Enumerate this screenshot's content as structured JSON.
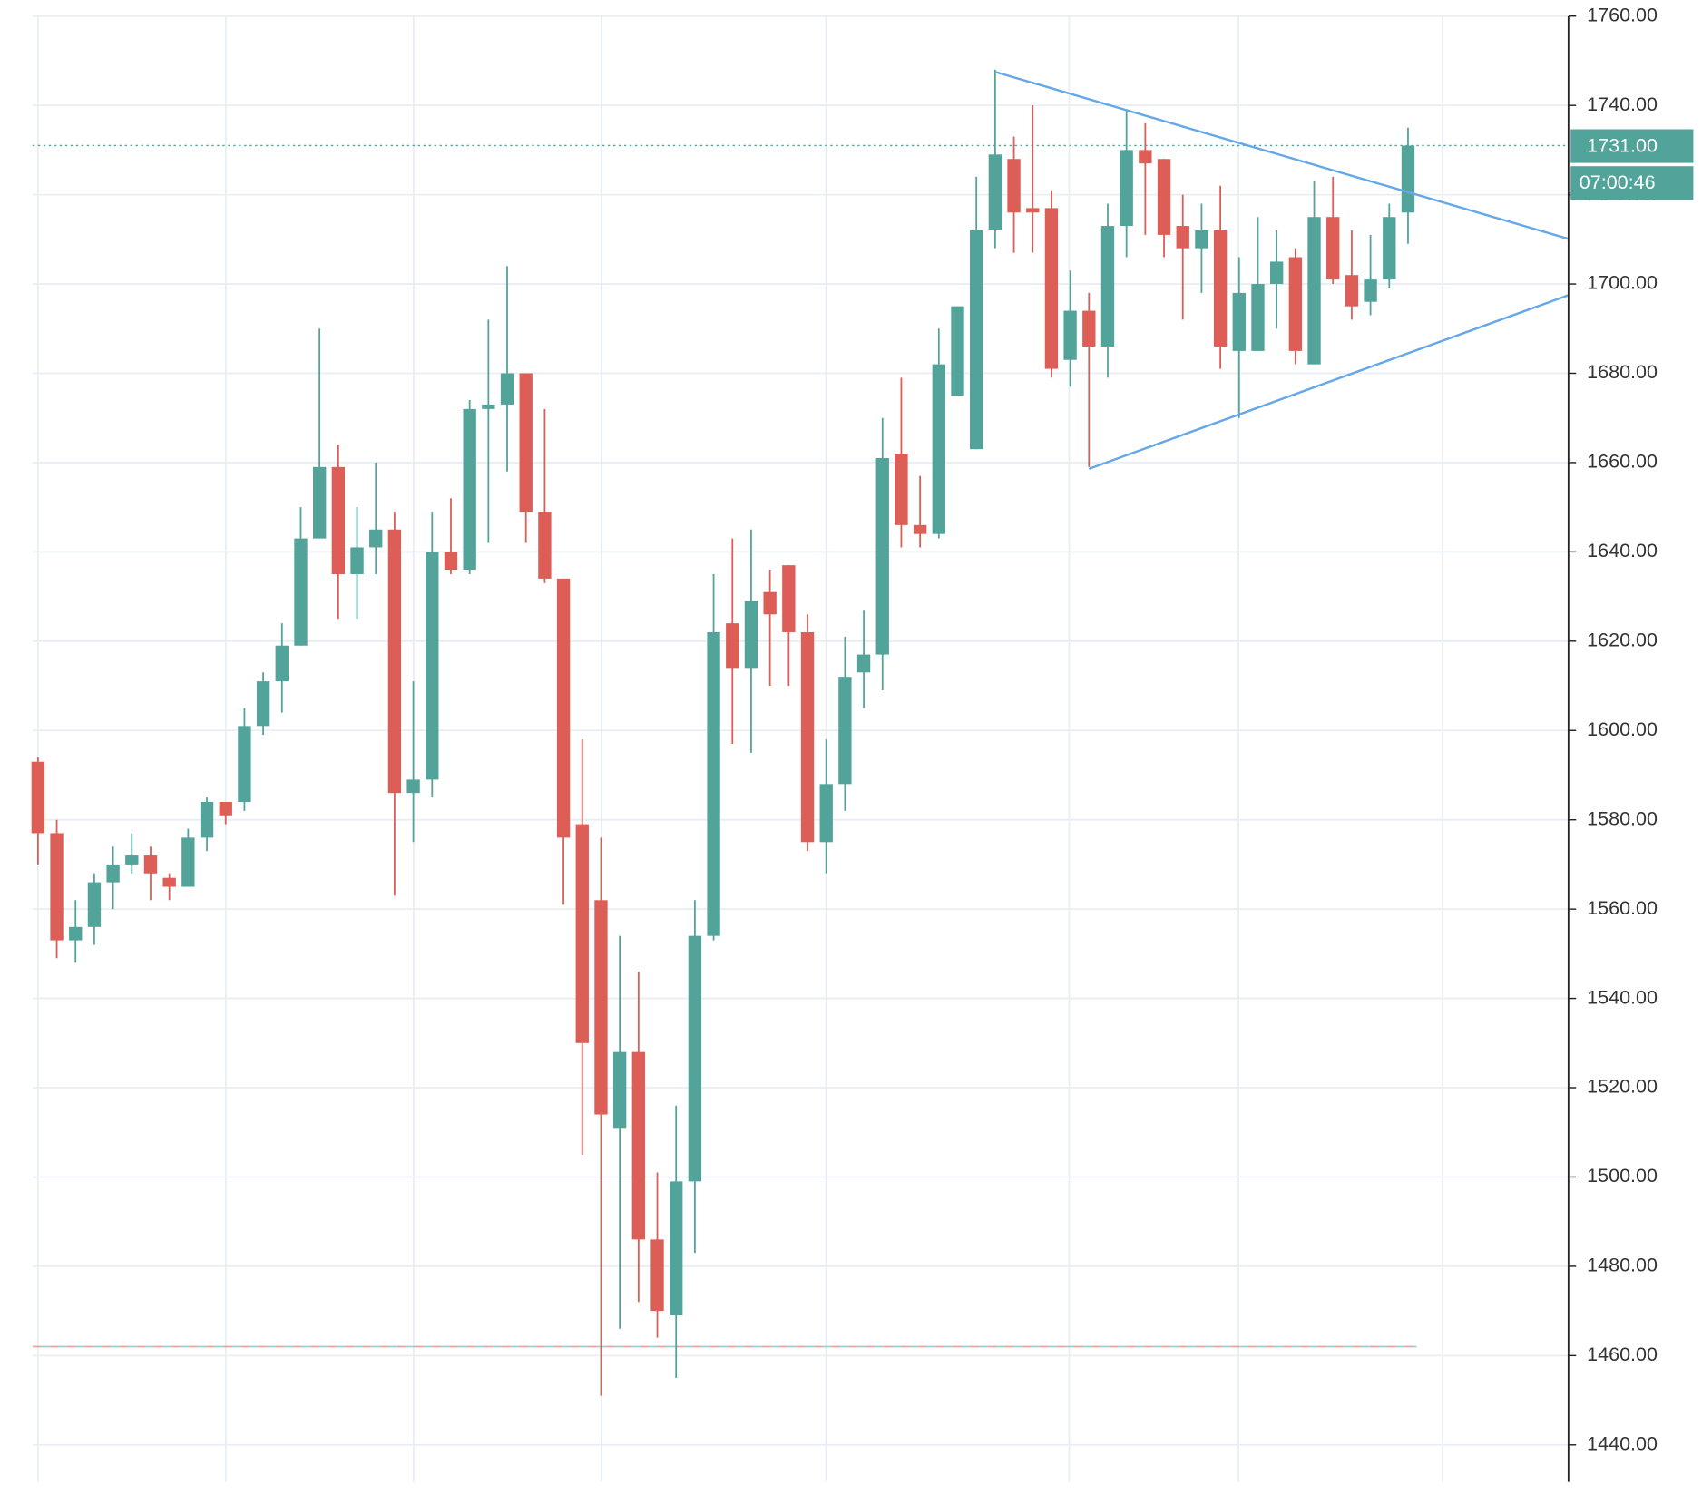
{
  "chart_data": {
    "type": "candlestick",
    "up_color": "#52a49a",
    "down_color": "#dd5e56",
    "grid": true,
    "ylim": [
      1431.7,
      1763.6
    ],
    "yticks": [
      {
        "value": 1440,
        "label": "1440.00"
      },
      {
        "value": 1460,
        "label": "1460.00"
      },
      {
        "value": 1480,
        "label": "1480.00"
      },
      {
        "value": 1500,
        "label": "1500.00"
      },
      {
        "value": 1520,
        "label": "1520.00"
      },
      {
        "value": 1540,
        "label": "1540.00"
      },
      {
        "value": 1560,
        "label": "1560.00"
      },
      {
        "value": 1580,
        "label": "1580.00"
      },
      {
        "value": 1600,
        "label": "1600.00"
      },
      {
        "value": 1620,
        "label": "1620.00"
      },
      {
        "value": 1640,
        "label": "1640.00"
      },
      {
        "value": 1660,
        "label": "1660.00"
      },
      {
        "value": 1680,
        "label": "1680.00"
      },
      {
        "value": 1700,
        "label": "1700.00"
      },
      {
        "value": 1720,
        "label": "1720.00"
      },
      {
        "value": 1740,
        "label": "1740.00"
      },
      {
        "value": 1760,
        "label": "1760.00"
      }
    ],
    "open": [
      1593,
      1577,
      1553,
      1556,
      1566,
      1570,
      1572,
      1567,
      1565,
      1576,
      1584,
      1584,
      1601,
      1611,
      1619,
      1643,
      1659,
      1635,
      1641,
      1645,
      1586,
      1589,
      1640,
      1636,
      1672,
      1673,
      1680,
      1649,
      1634,
      1579,
      1562,
      1511,
      1528,
      1486,
      1469,
      1499,
      1554,
      1624,
      1614,
      1631,
      1637,
      1622,
      1575,
      1588,
      1613,
      1617,
      1662,
      1646,
      1644,
      1675,
      1663,
      1712,
      1728,
      1717,
      1717,
      1683,
      1694,
      1686,
      1713,
      1730,
      1728,
      1713,
      1708,
      1712,
      1685,
      1685,
      1700,
      1706,
      1682,
      1715,
      1702,
      1696,
      1701,
      1716
    ],
    "high": [
      1594,
      1580,
      1562,
      1568,
      1574,
      1577,
      1574,
      1568,
      1578,
      1585,
      1584,
      1605,
      1613,
      1624,
      1650,
      1690,
      1664,
      1650,
      1660,
      1649,
      1611,
      1649,
      1652,
      1674,
      1692,
      1704,
      1680,
      1672,
      1634,
      1598,
      1576,
      1554,
      1546,
      1501,
      1516,
      1562,
      1635,
      1643,
      1645,
      1636,
      1637,
      1626,
      1598,
      1621,
      1627,
      1670,
      1679,
      1657,
      1690,
      1695,
      1724,
      1748,
      1733,
      1740,
      1721,
      1703,
      1698,
      1718,
      1739,
      1736,
      1728,
      1720,
      1718,
      1722,
      1706,
      1715,
      1712,
      1708,
      1723,
      1724,
      1712,
      1711,
      1718,
      1735
    ],
    "low": [
      1570,
      1549,
      1548,
      1552,
      1560,
      1568,
      1562,
      1562,
      1565,
      1573,
      1579,
      1582,
      1599,
      1604,
      1619,
      1643,
      1625,
      1625,
      1635,
      1563,
      1575,
      1585,
      1635,
      1635,
      1642,
      1658,
      1642,
      1633,
      1561,
      1505,
      1451,
      1466,
      1472,
      1464,
      1455,
      1483,
      1553,
      1597,
      1595,
      1610,
      1610,
      1573,
      1568,
      1582,
      1605,
      1609,
      1641,
      1641,
      1643,
      1675,
      1663,
      1708,
      1707,
      1707,
      1679,
      1677,
      1659,
      1679,
      1706,
      1711,
      1706,
      1692,
      1698,
      1681,
      1670,
      1685,
      1690,
      1682,
      1682,
      1700,
      1692,
      1693,
      1699,
      1709
    ],
    "close": [
      1577,
      1553,
      1556,
      1566,
      1570,
      1572,
      1568,
      1565,
      1576,
      1584,
      1581,
      1601,
      1611,
      1619,
      1643,
      1659,
      1635,
      1641,
      1645,
      1586,
      1589,
      1640,
      1636,
      1672,
      1673,
      1680,
      1649,
      1634,
      1576,
      1530,
      1514,
      1528,
      1486,
      1470,
      1499,
      1554,
      1622,
      1614,
      1629,
      1626,
      1622,
      1575,
      1588,
      1612,
      1617,
      1661,
      1646,
      1644,
      1682,
      1695,
      1712,
      1729,
      1716,
      1716,
      1681,
      1694,
      1686,
      1713,
      1730,
      1727,
      1711,
      1708,
      1712,
      1686,
      1698,
      1700,
      1705,
      1685,
      1715,
      1701,
      1695,
      1701,
      1715,
      1731
    ],
    "price_line": {
      "value": 1731,
      "label": "1731.00"
    },
    "countdown": "07:00:46",
    "low_line": 1462,
    "trendline_color": "#64a8e8",
    "trendlines": [
      [
        [
          51,
          1747.5
        ],
        [
          81.55,
          1710.1
        ]
      ],
      [
        [
          56,
          1658.6
        ],
        [
          81.55,
          1697.5
        ]
      ]
    ]
  }
}
